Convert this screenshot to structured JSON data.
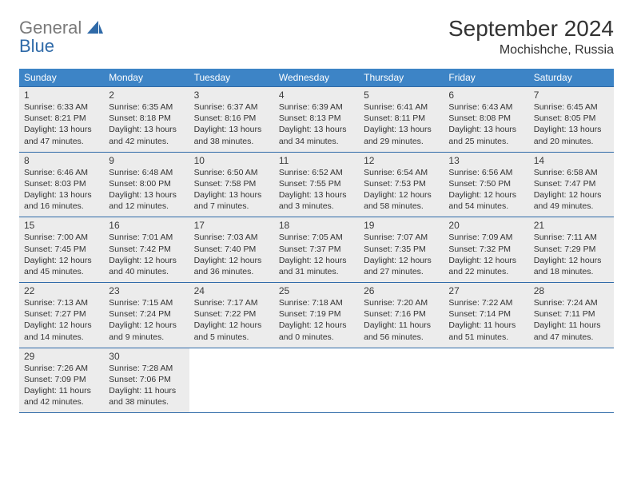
{
  "brand": {
    "part1": "General",
    "part2": "Blue"
  },
  "title": "September 2024",
  "location": "Mochishche, Russia",
  "colors": {
    "header_bg": "#3d84c6",
    "rule": "#2f6aa8",
    "cell_bg": "#ececec",
    "text": "#333333"
  },
  "dayHeaders": [
    "Sunday",
    "Monday",
    "Tuesday",
    "Wednesday",
    "Thursday",
    "Friday",
    "Saturday"
  ],
  "weeks": [
    [
      {
        "n": 1,
        "sr": "6:33 AM",
        "ss": "8:21 PM",
        "dl": "13 hours and 47 minutes."
      },
      {
        "n": 2,
        "sr": "6:35 AM",
        "ss": "8:18 PM",
        "dl": "13 hours and 42 minutes."
      },
      {
        "n": 3,
        "sr": "6:37 AM",
        "ss": "8:16 PM",
        "dl": "13 hours and 38 minutes."
      },
      {
        "n": 4,
        "sr": "6:39 AM",
        "ss": "8:13 PM",
        "dl": "13 hours and 34 minutes."
      },
      {
        "n": 5,
        "sr": "6:41 AM",
        "ss": "8:11 PM",
        "dl": "13 hours and 29 minutes."
      },
      {
        "n": 6,
        "sr": "6:43 AM",
        "ss": "8:08 PM",
        "dl": "13 hours and 25 minutes."
      },
      {
        "n": 7,
        "sr": "6:45 AM",
        "ss": "8:05 PM",
        "dl": "13 hours and 20 minutes."
      }
    ],
    [
      {
        "n": 8,
        "sr": "6:46 AM",
        "ss": "8:03 PM",
        "dl": "13 hours and 16 minutes."
      },
      {
        "n": 9,
        "sr": "6:48 AM",
        "ss": "8:00 PM",
        "dl": "13 hours and 12 minutes."
      },
      {
        "n": 10,
        "sr": "6:50 AM",
        "ss": "7:58 PM",
        "dl": "13 hours and 7 minutes."
      },
      {
        "n": 11,
        "sr": "6:52 AM",
        "ss": "7:55 PM",
        "dl": "13 hours and 3 minutes."
      },
      {
        "n": 12,
        "sr": "6:54 AM",
        "ss": "7:53 PM",
        "dl": "12 hours and 58 minutes."
      },
      {
        "n": 13,
        "sr": "6:56 AM",
        "ss": "7:50 PM",
        "dl": "12 hours and 54 minutes."
      },
      {
        "n": 14,
        "sr": "6:58 AM",
        "ss": "7:47 PM",
        "dl": "12 hours and 49 minutes."
      }
    ],
    [
      {
        "n": 15,
        "sr": "7:00 AM",
        "ss": "7:45 PM",
        "dl": "12 hours and 45 minutes."
      },
      {
        "n": 16,
        "sr": "7:01 AM",
        "ss": "7:42 PM",
        "dl": "12 hours and 40 minutes."
      },
      {
        "n": 17,
        "sr": "7:03 AM",
        "ss": "7:40 PM",
        "dl": "12 hours and 36 minutes."
      },
      {
        "n": 18,
        "sr": "7:05 AM",
        "ss": "7:37 PM",
        "dl": "12 hours and 31 minutes."
      },
      {
        "n": 19,
        "sr": "7:07 AM",
        "ss": "7:35 PM",
        "dl": "12 hours and 27 minutes."
      },
      {
        "n": 20,
        "sr": "7:09 AM",
        "ss": "7:32 PM",
        "dl": "12 hours and 22 minutes."
      },
      {
        "n": 21,
        "sr": "7:11 AM",
        "ss": "7:29 PM",
        "dl": "12 hours and 18 minutes."
      }
    ],
    [
      {
        "n": 22,
        "sr": "7:13 AM",
        "ss": "7:27 PM",
        "dl": "12 hours and 14 minutes."
      },
      {
        "n": 23,
        "sr": "7:15 AM",
        "ss": "7:24 PM",
        "dl": "12 hours and 9 minutes."
      },
      {
        "n": 24,
        "sr": "7:17 AM",
        "ss": "7:22 PM",
        "dl": "12 hours and 5 minutes."
      },
      {
        "n": 25,
        "sr": "7:18 AM",
        "ss": "7:19 PM",
        "dl": "12 hours and 0 minutes."
      },
      {
        "n": 26,
        "sr": "7:20 AM",
        "ss": "7:16 PM",
        "dl": "11 hours and 56 minutes."
      },
      {
        "n": 27,
        "sr": "7:22 AM",
        "ss": "7:14 PM",
        "dl": "11 hours and 51 minutes."
      },
      {
        "n": 28,
        "sr": "7:24 AM",
        "ss": "7:11 PM",
        "dl": "11 hours and 47 minutes."
      }
    ],
    [
      {
        "n": 29,
        "sr": "7:26 AM",
        "ss": "7:09 PM",
        "dl": "11 hours and 42 minutes."
      },
      {
        "n": 30,
        "sr": "7:28 AM",
        "ss": "7:06 PM",
        "dl": "11 hours and 38 minutes."
      },
      null,
      null,
      null,
      null,
      null
    ]
  ],
  "labels": {
    "sunrise": "Sunrise:",
    "sunset": "Sunset:",
    "daylight": "Daylight:"
  }
}
